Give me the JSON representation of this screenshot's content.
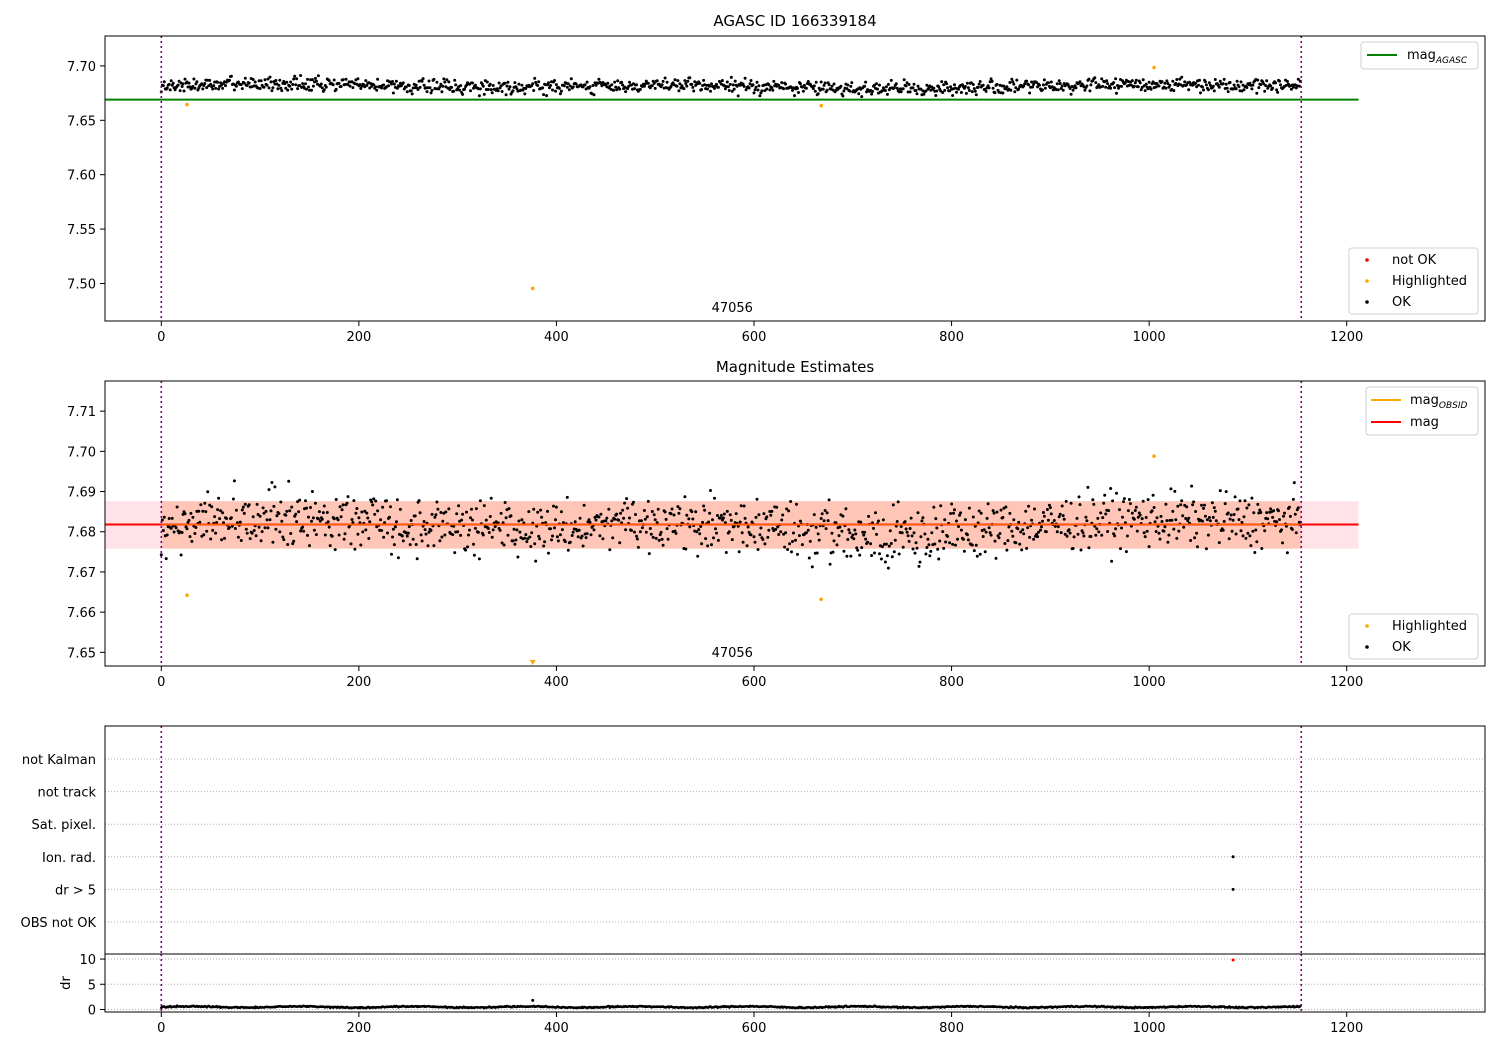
{
  "colors": {
    "ok": "#000000",
    "highlighted": "#ffa500",
    "not_ok": "#ff0000",
    "mag_agasc": "#008000",
    "mag_obsid": "#ffa500",
    "mag": "#ff0000",
    "obs_marker": "#800080",
    "band_outer": "#ffc0cb",
    "band_inner": "#ffa07a",
    "grid": "#b0b0b0"
  },
  "chart_data": [
    {
      "id": "top",
      "type": "scatter",
      "title": "AGASC ID 166339184",
      "xlim": [
        -57,
        1340
      ],
      "ylim": [
        7.4655,
        7.7275
      ],
      "xticks": [
        0,
        200,
        400,
        600,
        800,
        1000,
        1200
      ],
      "yticks": [
        7.5,
        7.55,
        7.6,
        7.65,
        7.7
      ],
      "ytick_labels": [
        "7.50",
        "7.55",
        "7.60",
        "7.65",
        "7.70"
      ],
      "obsid_lines": [
        0,
        1154
      ],
      "obsid_label": "47056",
      "obsid_label_x": 578,
      "hline": {
        "value": 7.669,
        "x_end": 1212
      },
      "legend_lines": [
        {
          "label": "mag",
          "sub": "AGASC",
          "color": "#008000"
        }
      ],
      "legend_markers": [
        {
          "label": "not OK",
          "color": "#ff0000"
        },
        {
          "label": "Highlighted",
          "color": "#ffa500"
        },
        {
          "label": "OK",
          "color": "#000000"
        }
      ],
      "series": {
        "n": 1154,
        "base": 7.6815,
        "spread": 0.0045
      },
      "highlighted_points": [
        {
          "x": 26,
          "y": 7.6645
        },
        {
          "x": 376,
          "y": 7.4955
        },
        {
          "x": 668,
          "y": 7.6635
        },
        {
          "x": 1005,
          "y": 7.6985
        }
      ]
    },
    {
      "id": "middle",
      "type": "scatter",
      "title": "Magnitude Estimates",
      "xlim": [
        -57,
        1340
      ],
      "ylim": [
        7.6466,
        7.7175
      ],
      "xticks": [
        0,
        200,
        400,
        600,
        800,
        1000,
        1200
      ],
      "yticks": [
        7.65,
        7.66,
        7.67,
        7.68,
        7.69,
        7.7,
        7.71
      ],
      "ytick_labels": [
        "7.65",
        "7.66",
        "7.67",
        "7.68",
        "7.69",
        "7.70",
        "7.71"
      ],
      "obsid_lines": [
        0,
        1154
      ],
      "obsid_label": "47056",
      "obsid_label_x": 578,
      "mag_line": {
        "value": 7.6818,
        "x_end": 1212
      },
      "band_outer": [
        7.6758,
        7.6876
      ],
      "band_inner": [
        7.6758,
        7.6876
      ],
      "legend_lines": [
        {
          "label": "mag",
          "sub": "OBSID",
          "color": "#ffa500"
        },
        {
          "label": "mag",
          "sub": "",
          "color": "#ff0000"
        }
      ],
      "legend_markers": [
        {
          "label": "Highlighted",
          "color": "#ffa500"
        },
        {
          "label": "OK",
          "color": "#000000"
        }
      ],
      "series": {
        "n": 1154,
        "base": 7.6815,
        "spread": 0.0048
      },
      "highlighted_points": [
        {
          "x": 26,
          "y": 7.6642
        },
        {
          "x": 668,
          "y": 7.6632
        },
        {
          "x": 1005,
          "y": 7.6988
        }
      ],
      "below_range_point": {
        "x": 376
      }
    },
    {
      "id": "flags",
      "type": "scatter",
      "xlim": [
        -57,
        1340
      ],
      "categories": [
        "not Kalman",
        "not track",
        "Sat. pixel.",
        "Ion. rad.",
        "dr > 5",
        "OBS not OK"
      ],
      "obsid_lines": [
        0,
        1154
      ],
      "flag_points": [
        {
          "category": "Ion. rad.",
          "x": 1085
        },
        {
          "category": "dr > 5",
          "x": 1085
        }
      ]
    },
    {
      "id": "dr",
      "type": "scatter",
      "ylabel": "dr",
      "xlim": [
        -57,
        1340
      ],
      "ylim": [
        -0.5,
        11.0
      ],
      "xticks": [
        0,
        200,
        400,
        600,
        800,
        1000,
        1200
      ],
      "yticks": [
        0,
        5,
        10
      ],
      "obsid_lines": [
        0,
        1154
      ],
      "series": {
        "n": 1154,
        "base": 0.5,
        "spread": 0.18
      },
      "outliers": [
        {
          "x": 376,
          "y": 1.8,
          "color": "#000000"
        },
        {
          "x": 1085,
          "y": 9.8,
          "color": "#ff0000"
        }
      ]
    }
  ]
}
